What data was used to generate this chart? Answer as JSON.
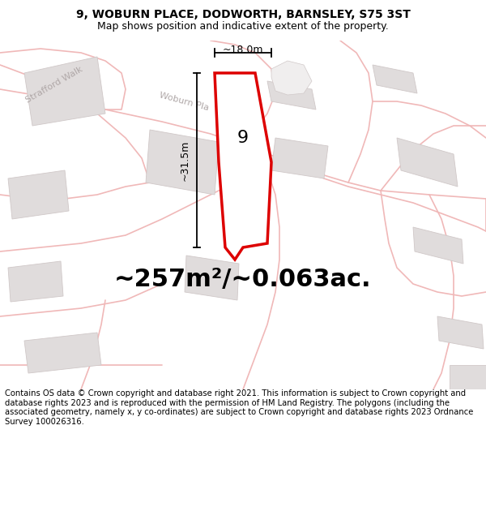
{
  "title": "9, WOBURN PLACE, DODWORTH, BARNSLEY, S75 3ST",
  "subtitle": "Map shows position and indicative extent of the property.",
  "area_text": "~257m²/~0.063ac.",
  "dim_width": "~18.0m",
  "dim_height": "~31.5m",
  "property_label": "9",
  "footer": "Contains OS data © Crown copyright and database right 2021. This information is subject to Crown copyright and database rights 2023 and is reproduced with the permission of HM Land Registry. The polygons (including the associated geometry, namely x, y co-ordinates) are subject to Crown copyright and database rights 2023 Ordnance Survey 100026316.",
  "map_bg": "#f7f2f2",
  "property_fill": "#ffffff",
  "property_edge": "#dd0000",
  "road_color": "#f0b8b8",
  "building_fill": "#e0dcdc",
  "building_edge": "#d0c8c8",
  "road_label_color": "#b0a8a8",
  "title_fontsize": 10,
  "subtitle_fontsize": 9,
  "area_fontsize": 22,
  "label_fontsize": 16,
  "footer_fontsize": 7.2
}
